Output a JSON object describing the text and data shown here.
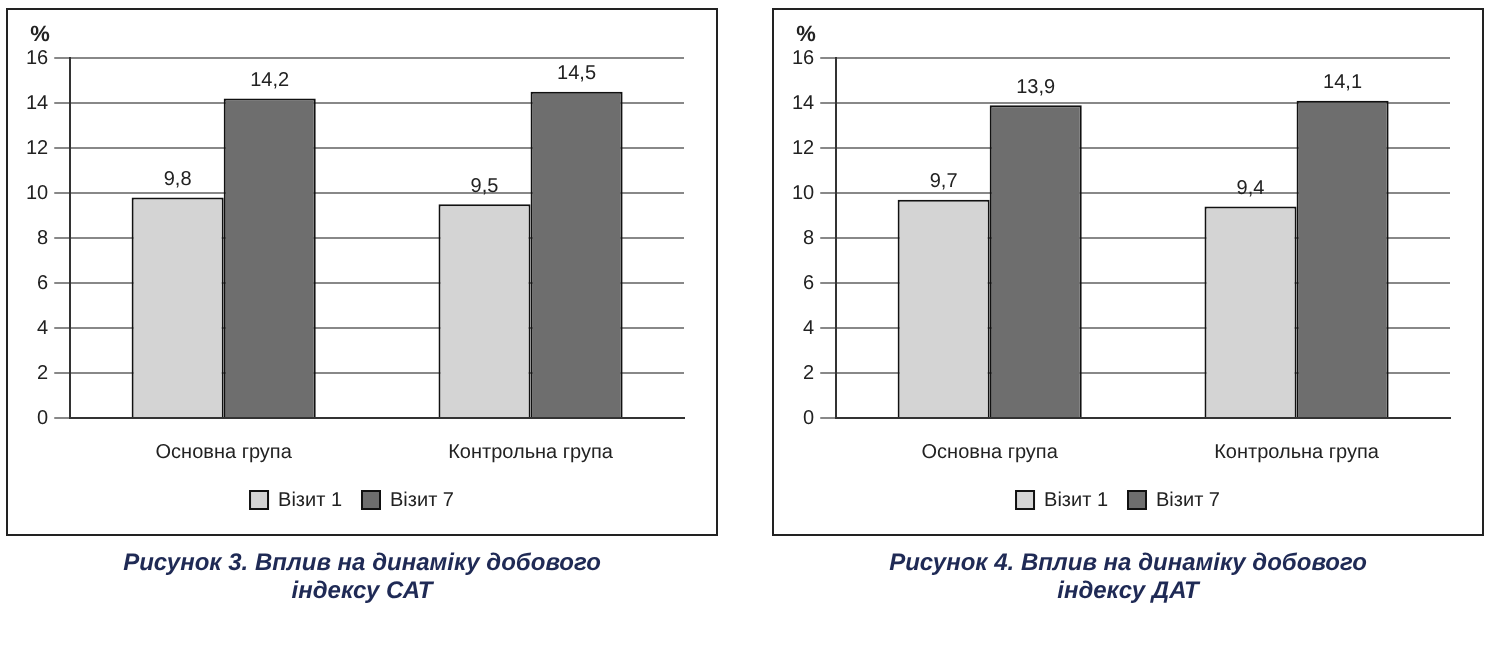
{
  "chart_data": [
    {
      "type": "bar",
      "title": "Рисунок 3. Вплив на динаміку добового індексу САТ",
      "ylabel": "%",
      "categories": [
        "Основна група",
        "Контрольна група"
      ],
      "series": [
        {
          "name": "Візит 1",
          "color": "#d4d4d4",
          "values": [
            9.8,
            9.5
          ],
          "value_labels": [
            "9,8",
            "9,5"
          ]
        },
        {
          "name": "Візит 7",
          "color": "#6e6e6e",
          "values": [
            14.2,
            14.5
          ],
          "value_labels": [
            "14,2",
            "14,5"
          ]
        }
      ],
      "ylim": [
        0,
        16
      ],
      "yticks": [
        0,
        2,
        4,
        6,
        8,
        10,
        12,
        14,
        16
      ],
      "grid": "y",
      "legend": "bottom"
    },
    {
      "type": "bar",
      "title": "Рисунок 4. Вплив на динаміку добового індексу ДАТ",
      "ylabel": "%",
      "categories": [
        "Основна група",
        "Контрольна група"
      ],
      "series": [
        {
          "name": "Візит 1",
          "color": "#d4d4d4",
          "values": [
            9.7,
            9.4
          ],
          "value_labels": [
            "9,7",
            "9,4"
          ]
        },
        {
          "name": "Візит 7",
          "color": "#6e6e6e",
          "values": [
            13.9,
            14.1
          ],
          "value_labels": [
            "13,9",
            "14,1"
          ]
        }
      ],
      "ylim": [
        0,
        16
      ],
      "yticks": [
        0,
        2,
        4,
        6,
        8,
        10,
        12,
        14,
        16
      ],
      "grid": "y",
      "legend": "bottom"
    }
  ]
}
